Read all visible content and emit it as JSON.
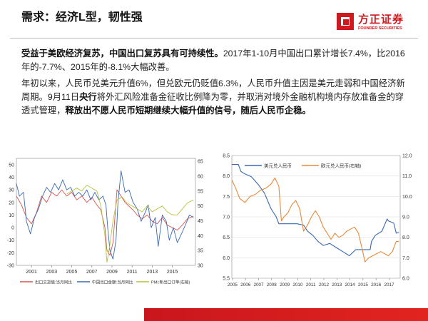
{
  "header": {
    "title": "需求：经济L型，韧性强",
    "logo_cn": "方正证券",
    "logo_en": "FOUNDER SECURITIES"
  },
  "body": {
    "p1_bold": "受益于美欧经济复苏，中国出口复苏具有可持续性。",
    "p1_rest": "2017年1-10月中国出口累计增长7.4%，比2016年的-7.7%、2015年的-8.1%大幅改善。",
    "p2_a": "年初以来，人民币兑美元升值6%，但兑欧元仍贬值6.3%，人民币升值主因是美元走弱和中国经济新周期。9月11日",
    "p2_b1": "央行",
    "p2_c": "将外汇风险准备金征收比例降为零，并取消对境外金融机构境内存放准备金的穿透式管理，",
    "p2_b2": "释放出不愿人民币短期继续大幅升值的信号，随后人民币企稳。"
  },
  "colors": {
    "brand_red": "#d0191f",
    "series_red": "#d9534f",
    "series_blue": "#3a68b3",
    "series_green": "#b6c23f",
    "series_orange": "#e8893a"
  },
  "chart_data": [
    {
      "type": "line",
      "x_ticks": [
        "2001",
        "2003",
        "2005",
        "2007",
        "2009",
        "2011",
        "2013",
        "2015"
      ],
      "y_left_ticks": [
        "-30",
        "-20",
        "-10",
        "0",
        "10",
        "20",
        "30",
        "40",
        "50"
      ],
      "ylim_left": [
        -30,
        55
      ],
      "y_right_ticks": [
        "30",
        "35",
        "40",
        "45",
        "50",
        "55",
        "60",
        "65"
      ],
      "ylim_right": [
        30,
        66
      ],
      "series": [
        {
          "name": "出口交货值:当月同比",
          "axis": "left",
          "x": [
            2000.0,
            2000.5,
            2001.0,
            2001.5,
            2002.0,
            2002.5,
            2003.0,
            2003.5,
            2004.0,
            2004.5,
            2005.0,
            2005.5,
            2006.0,
            2006.5,
            2007.0,
            2007.5,
            2008.0,
            2008.4,
            2008.8,
            2009.0,
            2009.3,
            2009.6,
            2010.0,
            2010.4,
            2010.8,
            2011.2,
            2011.6,
            2012.0,
            2012.5,
            2013.0,
            2013.5,
            2014.0,
            2014.5,
            2015.0,
            2015.5,
            2016.0,
            2016.5,
            2017.0,
            2017.6
          ],
          "y": [
            25,
            18,
            8,
            3,
            12,
            25,
            20,
            28,
            25,
            30,
            25,
            28,
            22,
            25,
            20,
            24,
            18,
            14,
            0,
            -18,
            -22,
            -12,
            30,
            25,
            20,
            17,
            14,
            10,
            7,
            10,
            5,
            3,
            8,
            2,
            0,
            -2,
            2,
            7,
            9
          ]
        },
        {
          "name": "中国出口金额:当月同比",
          "axis": "left",
          "x": [
            2000.0,
            2000.3,
            2000.7,
            2001.0,
            2001.4,
            2001.8,
            2002.2,
            2002.6,
            2003.0,
            2003.4,
            2003.8,
            2004.2,
            2004.6,
            2005.0,
            2005.4,
            2005.8,
            2006.2,
            2006.6,
            2007.0,
            2007.4,
            2007.8,
            2008.2,
            2008.6,
            2008.9,
            2009.1,
            2009.3,
            2009.6,
            2009.9,
            2010.1,
            2010.4,
            2010.8,
            2011.2,
            2011.6,
            2012.0,
            2012.4,
            2012.8,
            2013.1,
            2013.4,
            2013.8,
            2014.1,
            2014.5,
            2014.9,
            2015.2,
            2015.6,
            2016.0,
            2016.4,
            2016.8,
            2017.2,
            2017.6
          ],
          "y": [
            35,
            25,
            28,
            5,
            -5,
            8,
            15,
            25,
            32,
            28,
            35,
            30,
            38,
            30,
            32,
            25,
            28,
            25,
            30,
            22,
            28,
            22,
            25,
            18,
            -2,
            -18,
            -25,
            -10,
            20,
            45,
            28,
            30,
            20,
            15,
            5,
            12,
            18,
            0,
            8,
            -15,
            10,
            5,
            -10,
            0,
            -12,
            -5,
            2,
            10,
            8
          ]
        },
        {
          "name": "PMI:新出口订单(右轴)",
          "axis": "right",
          "x": [
            2005.0,
            2005.5,
            2006.0,
            2006.5,
            2007.0,
            2007.5,
            2008.0,
            2008.4,
            2008.8,
            2009.0,
            2009.3,
            2009.6,
            2010.0,
            2010.5,
            2011.0,
            2011.5,
            2012.0,
            2012.5,
            2013.0,
            2013.5,
            2014.0,
            2014.5,
            2015.0,
            2015.5,
            2016.0,
            2016.5,
            2017.0,
            2017.6
          ],
          "y": [
            54,
            55,
            56,
            55,
            57,
            56,
            55,
            50,
            40,
            31,
            37,
            45,
            52,
            53,
            51,
            50,
            49,
            48,
            50,
            48,
            49,
            50,
            48,
            47,
            47,
            49,
            51,
            52
          ]
        }
      ]
    },
    {
      "type": "line",
      "x_ticks": [
        "2005",
        "2006",
        "2007",
        "2008",
        "2009",
        "2010",
        "2011",
        "2012",
        "2013",
        "2014",
        "2015",
        "2016",
        "2017"
      ],
      "y_left_ticks": [
        "5.5",
        "6.0",
        "6.5",
        "7.0",
        "7.5",
        "8.0",
        "8.5"
      ],
      "ylim_left": [
        5.5,
        8.5
      ],
      "y_right_ticks": [
        "6.0",
        "7.0",
        "8.0",
        "9.0",
        "10.0",
        "11.0",
        "12.0"
      ],
      "ylim_right": [
        6.0,
        12.0
      ],
      "series": [
        {
          "name": "美元兑人民币",
          "axis": "left",
          "x": [
            2005.0,
            2005.5,
            2005.7,
            2006.0,
            2006.5,
            2007.0,
            2007.5,
            2008.0,
            2008.4,
            2008.6,
            2009.0,
            2009.5,
            2010.0,
            2010.5,
            2010.8,
            2011.2,
            2011.6,
            2012.0,
            2012.5,
            2013.0,
            2013.5,
            2014.0,
            2014.5,
            2015.0,
            2015.6,
            2015.7,
            2016.0,
            2016.5,
            2016.9,
            2017.0,
            2017.4,
            2017.6,
            2017.8
          ],
          "y": [
            8.28,
            8.28,
            8.11,
            8.05,
            7.98,
            7.8,
            7.58,
            7.2,
            7.0,
            6.83,
            6.83,
            6.83,
            6.83,
            6.8,
            6.65,
            6.55,
            6.4,
            6.3,
            6.35,
            6.25,
            6.15,
            6.05,
            6.2,
            6.2,
            6.2,
            6.4,
            6.55,
            6.65,
            6.95,
            6.9,
            6.85,
            6.6,
            6.62
          ]
        },
        {
          "name": "欧元兑人民币(右轴)",
          "axis": "right",
          "x": [
            2005.0,
            2005.3,
            2005.6,
            2006.0,
            2006.4,
            2006.8,
            2007.2,
            2007.6,
            2008.0,
            2008.3,
            2008.6,
            2008.8,
            2009.0,
            2009.3,
            2009.6,
            2009.9,
            2010.2,
            2010.5,
            2010.8,
            2011.1,
            2011.4,
            2011.7,
            2012.0,
            2012.3,
            2012.6,
            2012.9,
            2013.2,
            2013.5,
            2013.8,
            2014.1,
            2014.4,
            2014.7,
            2015.0,
            2015.2,
            2015.5,
            2015.8,
            2016.1,
            2016.4,
            2016.7,
            2017.0,
            2017.3,
            2017.6,
            2017.8
          ],
          "y": [
            10.8,
            10.4,
            9.9,
            9.7,
            10.0,
            10.1,
            10.3,
            10.4,
            10.6,
            10.9,
            10.5,
            8.8,
            9.0,
            9.2,
            9.6,
            9.8,
            9.4,
            8.3,
            8.6,
            9.0,
            9.3,
            9.0,
            8.5,
            8.2,
            7.9,
            8.2,
            8.0,
            8.1,
            8.3,
            8.4,
            8.5,
            8.2,
            7.4,
            6.8,
            7.0,
            7.1,
            7.2,
            7.3,
            7.2,
            7.1,
            7.3,
            7.8,
            7.8
          ]
        }
      ]
    }
  ]
}
